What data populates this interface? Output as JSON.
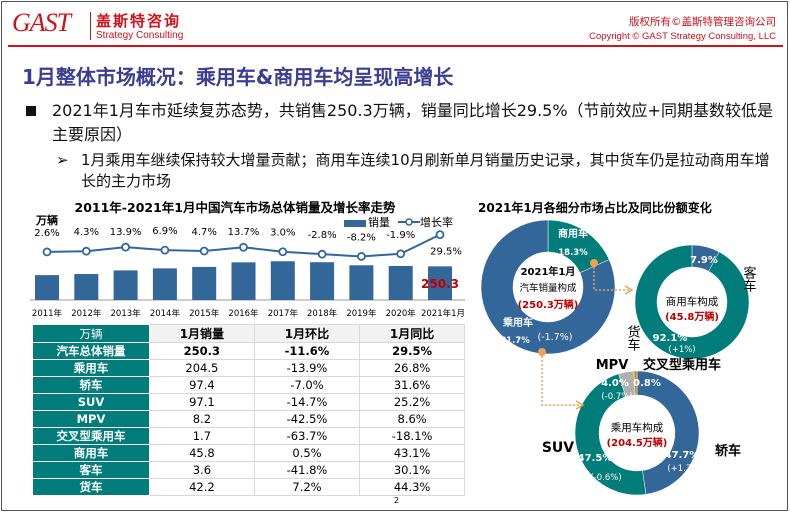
{
  "header": {
    "logo": "GAST",
    "company_cn": "盖斯特咨询",
    "company_en": "Strategy Consulting",
    "copyright_cn": "版权所有©盖斯特管理咨询公司",
    "copyright_en": "Copyright © GAST Strategy Consulting, LLC"
  },
  "title": "1月整体市场概况：乘用车&商用车均呈现高增长",
  "bullets": {
    "main": "2021年1月车市延续复苏态势，共销售250.3万辆，销量同比增长29.5%（节前效应+同期基数较低是主要原因）",
    "sub": "1月乘用车继续保持较大增量贡献；商用车连续10月刷新单月销量历史记录，其中货车仍是拉动商用车增长的主力市场"
  },
  "colors": {
    "blue": "#336699",
    "teal": "#007d7a",
    "red": "#c00000",
    "gray": "#b0b0b0",
    "orange": "#c8860a"
  },
  "chart_data": [
    {
      "type": "bar+line",
      "title": "2011年-2021年1月中国汽车市场总体销量及增长率走势",
      "ylabel": "万辆",
      "categories": [
        "2011年",
        "2012年",
        "2013年",
        "2014年",
        "2015年",
        "2016年",
        "2017年",
        "2018年",
        "2019年",
        "2020年",
        "2021年1月"
      ],
      "series": [
        {
          "name": "销量",
          "type": "bar",
          "values": [
            185,
            193,
            220,
            235,
            246,
            280,
            288,
            281,
            258,
            253,
            250.3
          ]
        },
        {
          "name": "增长率",
          "type": "line",
          "values": [
            2.6,
            4.3,
            13.9,
            6.9,
            4.7,
            13.7,
            3.0,
            -2.8,
            -8.2,
            -1.9,
            29.5
          ],
          "labels": [
            "2.6%",
            "4.3%",
            "13.9%",
            "6.9%",
            "4.7%",
            "13.7%",
            "3.0%",
            "-2.8%",
            "-8.2%",
            "-1.9%",
            "29.5%"
          ]
        }
      ],
      "highlight_label": "250.3",
      "legend": "top-right"
    },
    {
      "type": "pie",
      "title": "2021年1月各细分市场占比及同比份额变化",
      "center": [
        "2021年1月",
        "汽车销量构成",
        "(250.3万辆)"
      ],
      "slices": [
        {
          "name": "商用车",
          "value": 18.3,
          "label": "18.3%",
          "change": ""
        },
        {
          "name": "乘用车",
          "value": 81.7,
          "label": "81.7%",
          "change": "(-1.7%)"
        }
      ]
    },
    {
      "type": "pie",
      "center": [
        "商用车构成",
        "(45.8万辆)"
      ],
      "slices": [
        {
          "name": "客车",
          "value": 7.9,
          "label": "7.9%",
          "change": ""
        },
        {
          "name": "货车",
          "value": 92.1,
          "label": "92.1%",
          "change": "(+1%)"
        }
      ]
    },
    {
      "type": "pie",
      "center": [
        "乘用车构成",
        "(204.5万辆)"
      ],
      "slices": [
        {
          "name": "轿车",
          "value": 47.7,
          "label": "47.7%",
          "change": "(+1.7%)"
        },
        {
          "name": "SUV",
          "value": 47.5,
          "label": "47.5%",
          "change": "(-0.6%)"
        },
        {
          "name": "MPV",
          "value": 4.0,
          "label": "4.0%",
          "change": "(-0.7%)"
        },
        {
          "name": "交叉型乘用车",
          "value": 0.8,
          "label": "0.8%",
          "change": ""
        }
      ]
    }
  ],
  "table": {
    "headers": [
      "万辆",
      "1月销量",
      "1月环比",
      "1月同比"
    ],
    "rows": [
      [
        "汽车总体销量",
        "250.3",
        "-11.6%",
        "29.5%"
      ],
      [
        "乘用车",
        "204.5",
        "-13.9%",
        "26.8%"
      ],
      [
        "轿车",
        "97.4",
        "-7.0%",
        "31.6%"
      ],
      [
        "SUV",
        "97.1",
        "-14.7%",
        "25.2%"
      ],
      [
        "MPV",
        "8.2",
        "-42.5%",
        "8.6%"
      ],
      [
        "交叉型乘用车",
        "1.7",
        "-63.7%",
        "-18.1%"
      ],
      [
        "商用车",
        "45.8",
        "0.5%",
        "43.1%"
      ],
      [
        "客车",
        "3.6",
        "-41.8%",
        "30.1%"
      ],
      [
        "货车",
        "42.2",
        "7.2%",
        "44.3%"
      ]
    ]
  },
  "page_number": "2"
}
